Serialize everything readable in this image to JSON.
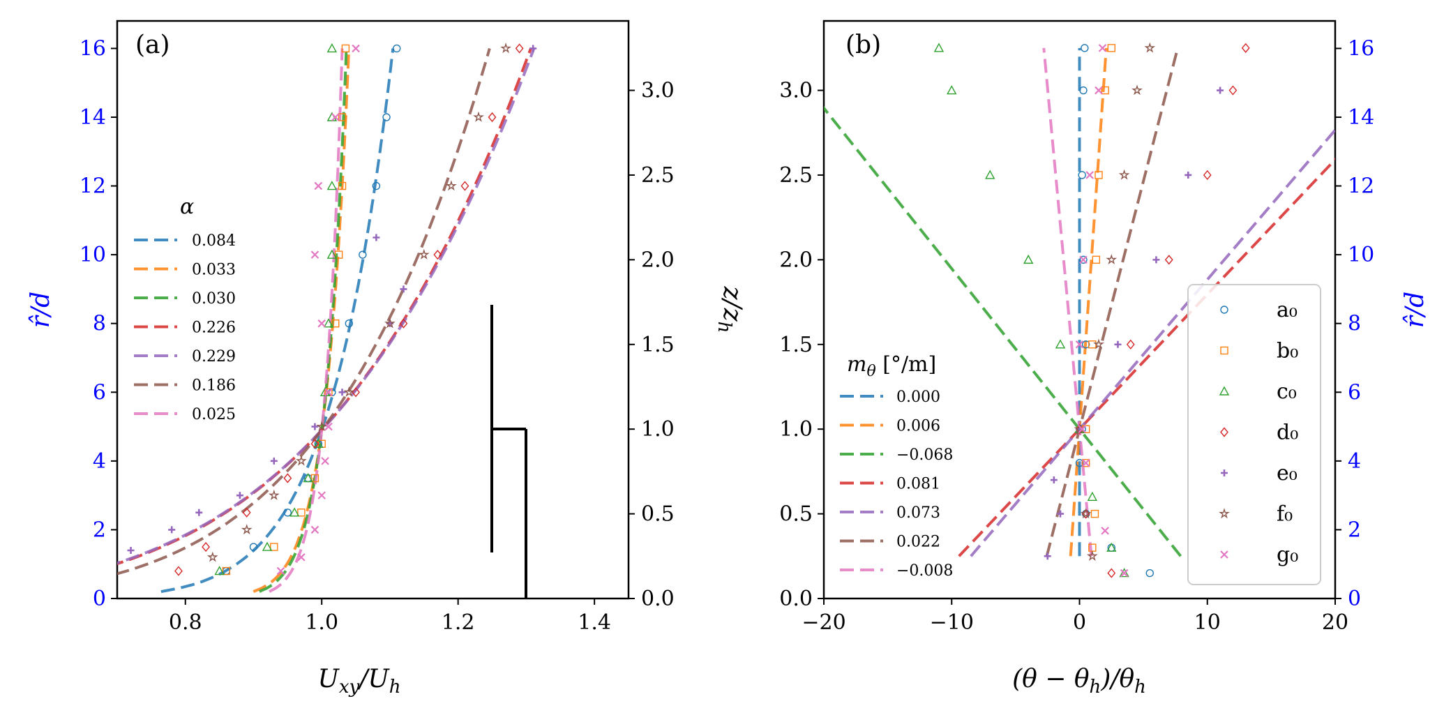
{
  "chart_data": [
    {
      "panel": "(a)",
      "type": "line",
      "xlabel": "U_xy/U_h",
      "ylabel_left": "r̂/d",
      "ylabel_right": "z/z_h",
      "xlim": [
        0.7,
        1.45
      ],
      "ylim_left": [
        0,
        16.8
      ],
      "ylim_right": [
        0,
        3.41
      ],
      "xticks": [
        "0.8",
        "1.0",
        "1.2",
        "1.4"
      ],
      "yticks_left": [
        "0",
        "2",
        "4",
        "6",
        "8",
        "10",
        "12",
        "14",
        "16"
      ],
      "yticks_right": [
        "0.0",
        "0.5",
        "1.0",
        "1.5",
        "2.0",
        "2.5",
        "3.0"
      ],
      "legend_title": "α",
      "legend_location": "center-left",
      "series": [
        {
          "name": "0.084",
          "color": "#1f77b4",
          "model": {
            "kind": "power",
            "alpha": 0.084
          },
          "marker": "circle",
          "markers": {
            "rhat": [
              0.8,
              1.5,
              2.5,
              3.5,
              4.5,
              6,
              8,
              10,
              12,
              14,
              16
            ],
            "u": [
              0.86,
              0.9,
              0.95,
              0.98,
              0.995,
              1.015,
              1.04,
              1.06,
              1.08,
              1.095,
              1.11
            ]
          }
        },
        {
          "name": "0.033",
          "color": "#ff7f0e",
          "model": {
            "kind": "power",
            "alpha": 0.033
          },
          "marker": "square",
          "markers": {
            "rhat": [
              0.8,
              1.5,
              2.5,
              3.5,
              4.5,
              6,
              8,
              10,
              12,
              14,
              16
            ],
            "u": [
              0.86,
              0.93,
              0.97,
              0.99,
              1.0,
              1.01,
              1.02,
              1.025,
              1.03,
              1.03,
              1.035
            ]
          }
        },
        {
          "name": "0.030",
          "color": "#2ca02c",
          "model": {
            "kind": "power",
            "alpha": 0.03
          },
          "marker": "triangle",
          "markers": {
            "rhat": [
              0.8,
              1.5,
              2.5,
              3.5,
              4.5,
              6,
              8,
              10,
              12,
              14,
              16
            ],
            "u": [
              0.85,
              0.92,
              0.96,
              0.98,
              0.995,
              1.005,
              1.01,
              1.015,
              1.015,
              1.015,
              1.015
            ]
          }
        },
        {
          "name": "0.226",
          "color": "#d62728",
          "model": {
            "kind": "power",
            "alpha": 0.226
          },
          "marker": "diamond",
          "markers": {
            "rhat": [
              0.8,
              1.5,
              2.5,
              3.5,
              4.5,
              6,
              8,
              10,
              12,
              14,
              16
            ],
            "u": [
              0.79,
              0.83,
              0.89,
              0.95,
              0.99,
              1.05,
              1.12,
              1.17,
              1.21,
              1.25,
              1.29
            ]
          }
        },
        {
          "name": "0.229",
          "color": "#9467bd",
          "model": {
            "kind": "power",
            "alpha": 0.229
          },
          "marker": "plus",
          "markers": {
            "rhat": [
              1.4,
              2,
              2.5,
              3,
              4,
              5,
              6,
              8,
              9,
              10.5,
              16
            ],
            "u": [
              0.72,
              0.78,
              0.82,
              0.88,
              0.93,
              0.99,
              1.03,
              1.1,
              1.12,
              1.08,
              1.31
            ]
          }
        },
        {
          "name": "0.186",
          "color": "#8c564b",
          "model": {
            "kind": "power",
            "alpha": 0.186
          },
          "marker": "star",
          "markers": {
            "rhat": [
              1.2,
              2,
              3,
              4,
              5,
              6,
              8,
              10,
              12,
              14,
              16
            ],
            "u": [
              0.84,
              0.89,
              0.93,
              0.97,
              1.0,
              1.04,
              1.1,
              1.15,
              1.19,
              1.23,
              1.27
            ]
          }
        },
        {
          "name": "0.025",
          "color": "#e377c2",
          "model": {
            "kind": "power",
            "alpha": 0.025
          },
          "marker": "x-square",
          "markers": {
            "rhat": [
              0.8,
              1.2,
              2,
              3,
              4,
              5,
              6,
              8,
              10,
              12,
              14,
              16
            ],
            "u": [
              0.94,
              0.97,
              0.99,
              1.0,
              1.005,
              1.01,
              1.01,
              1.0,
              0.99,
              0.995,
              1.02,
              1.05
            ]
          }
        }
      ],
      "annotation": "wind-turbine sketch: tower from r̂/d≈0 to 4.9 at U≈1.30, rotor vertical line at U≈1.25 from r̂/d≈1.4 to 8.5"
    },
    {
      "panel": "(b)",
      "type": "line",
      "xlabel": "(θ − θ_h)/θ_h",
      "ylabel_left": "z/z_h",
      "ylabel_right": "r̂/d",
      "xlim": [
        -20,
        20
      ],
      "ylim_left": [
        0,
        3.41
      ],
      "ylim_right": [
        0,
        16.8
      ],
      "xticks": [
        "−20",
        "−10",
        "0",
        "10",
        "20"
      ],
      "yticks_left": [
        "0.0",
        "0.5",
        "1.0",
        "1.5",
        "2.0",
        "2.5",
        "3.0"
      ],
      "yticks_right": [
        "0",
        "2",
        "4",
        "6",
        "8",
        "10",
        "12",
        "14",
        "16"
      ],
      "legend_title": "m_θ [°/m]",
      "legend_location": "lower-left",
      "marker_legend_location": "lower-right",
      "series": [
        {
          "name": "0.000",
          "marker_label": "a₀",
          "color": "#1f77b4",
          "slope": 0.0,
          "marker": "circle",
          "markers": {
            "z": [
              0.15,
              0.3,
              0.5,
              0.8,
              1.0,
              1.5,
              2.0,
              2.5,
              3.0,
              3.25
            ],
            "t": [
              5.5,
              2.5,
              0.5,
              0.0,
              0.2,
              0.5,
              0.3,
              0.2,
              0.3,
              0.4
            ]
          }
        },
        {
          "name": "0.006",
          "marker_label": "b₀",
          "color": "#ff7f0e",
          "slope": 0.006,
          "marker": "square",
          "markers": {
            "z": [
              0.3,
              0.5,
              0.8,
              1.0,
              1.5,
              2.0,
              2.5,
              3.0,
              3.25
            ],
            "t": [
              1.0,
              1.2,
              0.5,
              0.5,
              1.0,
              1.3,
              1.5,
              2.0,
              2.5
            ]
          }
        },
        {
          "name": "−0.068",
          "marker_label": "c₀",
          "color": "#2ca02c",
          "slope": -0.068,
          "marker": "triangle",
          "markers": {
            "z": [
              0.15,
              0.3,
              0.6,
              1.0,
              1.5,
              2.0,
              2.5,
              3.0,
              3.25
            ],
            "t": [
              3.5,
              2.5,
              1.0,
              0.0,
              -1.5,
              -4.0,
              -7.0,
              -10.0,
              -11.0
            ]
          }
        },
        {
          "name": "0.081",
          "marker_label": "d₀",
          "color": "#d62728",
          "slope": 0.081,
          "marker": "diamond",
          "markers": {
            "z": [
              0.15,
              0.5,
              1.0,
              1.5,
              2.0,
              2.5,
              3.0,
              3.25
            ],
            "t": [
              2.5,
              0.5,
              0.0,
              4.0,
              7.0,
              10.0,
              12.0,
              13.0
            ]
          }
        },
        {
          "name": "0.073",
          "marker_label": "e₀",
          "color": "#9467bd",
          "slope": 0.073,
          "marker": "plus",
          "markers": {
            "z": [
              0.25,
              0.5,
              0.7,
              1.0,
              1.5,
              2.0,
              2.5,
              3.0
            ],
            "t": [
              -2.5,
              -1.5,
              -2.0,
              0.0,
              3.0,
              6.0,
              8.5,
              11.0
            ]
          }
        },
        {
          "name": "0.022",
          "marker_label": "f₀",
          "color": "#8c564b",
          "slope": 0.022,
          "marker": "star",
          "markers": {
            "z": [
              0.25,
              0.5,
              1.0,
              1.5,
              2.0,
              2.5,
              3.0,
              3.25
            ],
            "t": [
              1.0,
              0.5,
              0.0,
              1.5,
              2.5,
              3.5,
              4.5,
              5.5
            ]
          }
        },
        {
          "name": "−0.008",
          "marker_label": "g₀",
          "color": "#e377c2",
          "slope": -0.008,
          "marker": "x-square",
          "markers": {
            "z": [
              0.15,
              0.4,
              0.8,
              1.0,
              1.5,
              2.0,
              2.5,
              3.0,
              3.25
            ],
            "t": [
              3.5,
              2.0,
              0.5,
              0.2,
              0.0,
              0.3,
              0.8,
              1.5,
              1.8
            ]
          }
        }
      ]
    }
  ],
  "labels": {
    "panel_a": "(a)",
    "panel_b": "(b)",
    "a_xlabel_base": "U",
    "a_xlabel_sub1": "xy",
    "a_xlabel_sep": "/U",
    "a_xlabel_sub2": "h",
    "rhat_label": "r̂/d",
    "zzh_base": "z/z",
    "zzh_sub": "h",
    "b_xlabel_left": "(θ − θ",
    "b_xlabel_sub1": "h",
    "b_xlabel_mid": ")/θ",
    "b_xlabel_sub2": "h",
    "leg_a_title": "α",
    "leg_b_title_m": "m",
    "leg_b_title_sub": "θ",
    "leg_b_title_unit": " [°/m]"
  }
}
